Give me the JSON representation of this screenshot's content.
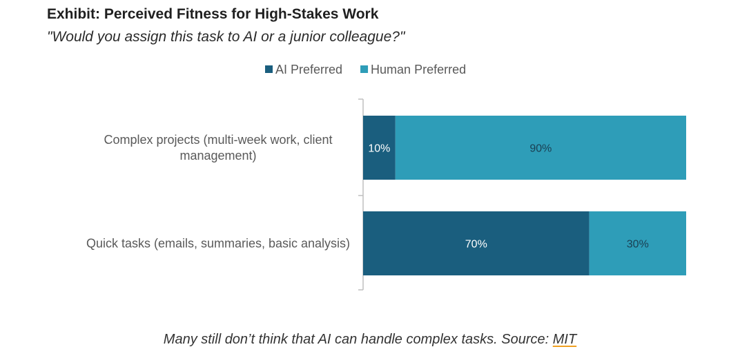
{
  "title": "Exhibit: Perceived Fitness for High-Stakes Work",
  "subtitle": "\"Would you assign this task to AI or a junior colleague?\"",
  "caption": {
    "text": "Many still don’t think that AI can handle complex tasks. Source: ",
    "link_label": "MIT"
  },
  "colors": {
    "ai": "#1a5e7e",
    "human": "#2e9db8",
    "axis": "#bfbfbf",
    "label_text": "#595959",
    "bar_label_ai": "#ffffff",
    "bar_label_human": "#1a3f52",
    "link_underline": "#f0a020"
  },
  "chart_data": {
    "type": "bar",
    "orientation": "horizontal",
    "stacked": true,
    "categories": [
      [
        "Complex projects (multi-week work, client",
        "management)"
      ],
      [
        "Quick tasks (emails, summaries, basic analysis)"
      ]
    ],
    "series": [
      {
        "name": "AI Preferred",
        "values": [
          10,
          70
        ],
        "labels": [
          "10%",
          "70%"
        ]
      },
      {
        "name": "Human Preferred",
        "values": [
          90,
          30
        ],
        "labels": [
          "90%",
          "30%"
        ]
      }
    ],
    "xlim": [
      0,
      100
    ],
    "legend": "top-center",
    "grid": false
  }
}
